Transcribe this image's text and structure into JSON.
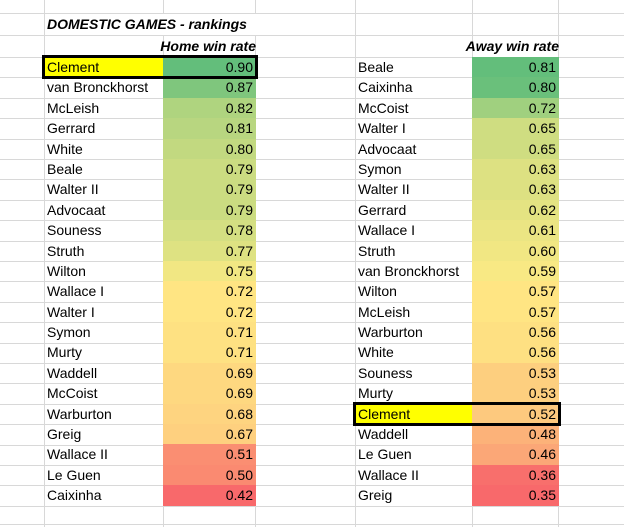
{
  "title": "DOMESTIC GAMES - rankings",
  "colors": {
    "highlight": "#FFFF00",
    "gridline": "#D8D8D8",
    "thick_border": "#000000",
    "text": "#000000",
    "background": "#FFFFFF"
  },
  "tables": {
    "home": {
      "header": "Home win rate",
      "rows": [
        {
          "name": "Clement",
          "value": "0.90",
          "fill": "#63BE7B",
          "highlight": true
        },
        {
          "name": "van Bronckhorst",
          "value": "0.87",
          "fill": "#7FC67D"
        },
        {
          "name": "McLeish",
          "value": "0.82",
          "fill": "#AFD47F"
        },
        {
          "name": "Gerrard",
          "value": "0.81",
          "fill": "#B8D680"
        },
        {
          "name": "White",
          "value": "0.80",
          "fill": "#C2D980"
        },
        {
          "name": "Beale",
          "value": "0.79",
          "fill": "#CBDC81"
        },
        {
          "name": "Walter II",
          "value": "0.79",
          "fill": "#CBDC81"
        },
        {
          "name": "Advocaat",
          "value": "0.79",
          "fill": "#CBDC81"
        },
        {
          "name": "Souness",
          "value": "0.78",
          "fill": "#D4DF82"
        },
        {
          "name": "Struth",
          "value": "0.77",
          "fill": "#DEE282"
        },
        {
          "name": "Wilton",
          "value": "0.75",
          "fill": "#F1E783"
        },
        {
          "name": "Wallace I",
          "value": "0.72",
          "fill": "#FFE583"
        },
        {
          "name": "Walter I",
          "value": "0.72",
          "fill": "#FFE583"
        },
        {
          "name": "Symon",
          "value": "0.71",
          "fill": "#FEE182"
        },
        {
          "name": "Murty",
          "value": "0.71",
          "fill": "#FEE182"
        },
        {
          "name": "Waddell",
          "value": "0.69",
          "fill": "#FED880"
        },
        {
          "name": "McCoist",
          "value": "0.69",
          "fill": "#FED880"
        },
        {
          "name": "Warburton",
          "value": "0.68",
          "fill": "#FED480"
        },
        {
          "name": "Greig",
          "value": "0.67",
          "fill": "#FED07F"
        },
        {
          "name": "Wallace II",
          "value": "0.51",
          "fill": "#FA8E72"
        },
        {
          "name": "Le Guen",
          "value": "0.50",
          "fill": "#FA8A71"
        },
        {
          "name": "Caixinha",
          "value": "0.42",
          "fill": "#F8696B"
        }
      ]
    },
    "away": {
      "header": "Away win rate",
      "rows": [
        {
          "name": "Beale",
          "value": "0.81",
          "fill": "#63BE7B"
        },
        {
          "name": "Caixinha",
          "value": "0.80",
          "fill": "#6AC07B"
        },
        {
          "name": "McCoist",
          "value": "0.72",
          "fill": "#A0D07F"
        },
        {
          "name": "Walter I",
          "value": "0.65",
          "fill": "#CFDD81"
        },
        {
          "name": "Advocaat",
          "value": "0.65",
          "fill": "#CFDD81"
        },
        {
          "name": "Symon",
          "value": "0.63",
          "fill": "#DDE182"
        },
        {
          "name": "Walter II",
          "value": "0.63",
          "fill": "#DDE182"
        },
        {
          "name": "Gerrard",
          "value": "0.62",
          "fill": "#E4E382"
        },
        {
          "name": "Wallace I",
          "value": "0.61",
          "fill": "#EBE583"
        },
        {
          "name": "Struth",
          "value": "0.60",
          "fill": "#F1E783"
        },
        {
          "name": "van Bronckhorst",
          "value": "0.59",
          "fill": "#F8E984"
        },
        {
          "name": "Wilton",
          "value": "0.57",
          "fill": "#FFE583"
        },
        {
          "name": "McLeish",
          "value": "0.57",
          "fill": "#FFE583"
        },
        {
          "name": "Warburton",
          "value": "0.56",
          "fill": "#FEE082"
        },
        {
          "name": "White",
          "value": "0.56",
          "fill": "#FEE082"
        },
        {
          "name": "Souness",
          "value": "0.53",
          "fill": "#FDCF7F"
        },
        {
          "name": "Murty",
          "value": "0.53",
          "fill": "#FDCF7F"
        },
        {
          "name": "Clement",
          "value": "0.52",
          "fill": "#FDC97E",
          "highlight": true
        },
        {
          "name": "Waddell",
          "value": "0.48",
          "fill": "#FCB279"
        },
        {
          "name": "Le Guen",
          "value": "0.46",
          "fill": "#FBA777"
        },
        {
          "name": "Wallace II",
          "value": "0.36",
          "fill": "#F86F6C"
        },
        {
          "name": "Greig",
          "value": "0.35",
          "fill": "#F8696B"
        }
      ]
    }
  }
}
